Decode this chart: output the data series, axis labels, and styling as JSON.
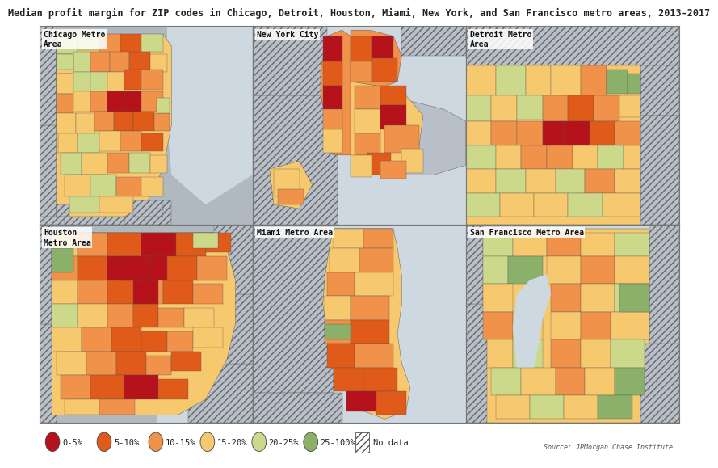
{
  "title": "Median profit margin for ZIP codes in Chicago, Detroit, Houston, Miami, New York, and San Francisco metro areas, 2013-2017",
  "title_fontsize": 8.5,
  "title_color": "#222222",
  "source_text": "Source: JPMorgan Chase Institute",
  "background_color": "#ffffff",
  "panel_bg": "#b0b8c0",
  "water_color": "#cdd8e0",
  "border_color": "#888888",
  "colors": {
    "c0": "#b5121b",
    "c1": "#e05a1a",
    "c2": "#f0924a",
    "c3": "#f7c96e",
    "c4": "#cdd98a",
    "c5": "#8ab06a",
    "no_data": "#b8bfc8"
  },
  "legend_items": [
    {
      "label": "0-5%",
      "color": "#b5121b"
    },
    {
      "label": "5-10%",
      "color": "#e05a1a"
    },
    {
      "label": "10-15%",
      "color": "#f0924a"
    },
    {
      "label": "15-20%",
      "color": "#f7c96e"
    },
    {
      "label": "20-25%",
      "color": "#cdd98a"
    },
    {
      "label": "25-100%",
      "color": "#8ab06a"
    }
  ]
}
